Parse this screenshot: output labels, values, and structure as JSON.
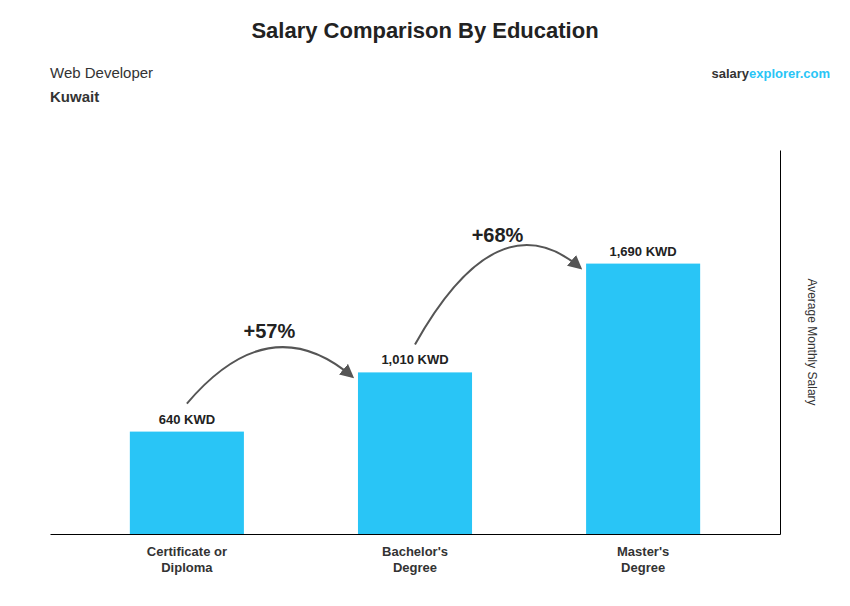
{
  "chart_data": {
    "type": "bar",
    "title": "Salary Comparison By Education",
    "subtitle": "Web Developer",
    "country": "Kuwait",
    "source": [
      "salary",
      "explorer.com"
    ],
    "categories": [
      "Certificate or\nDiploma",
      "Bachelor's\nDegree",
      "Master's\nDegree"
    ],
    "values": [
      640,
      1010,
      1690
    ],
    "value_labels": [
      "640 KWD",
      "1,010 KWD",
      "1,690 KWD"
    ],
    "data_labels": true,
    "annotations": [
      "+57%",
      "+68%"
    ],
    "ylabel": "Average Monthly Salary",
    "color": "#29c5f6",
    "ylim": [
      0,
      2400
    ],
    "tick_labels": "x",
    "grid": false
  }
}
